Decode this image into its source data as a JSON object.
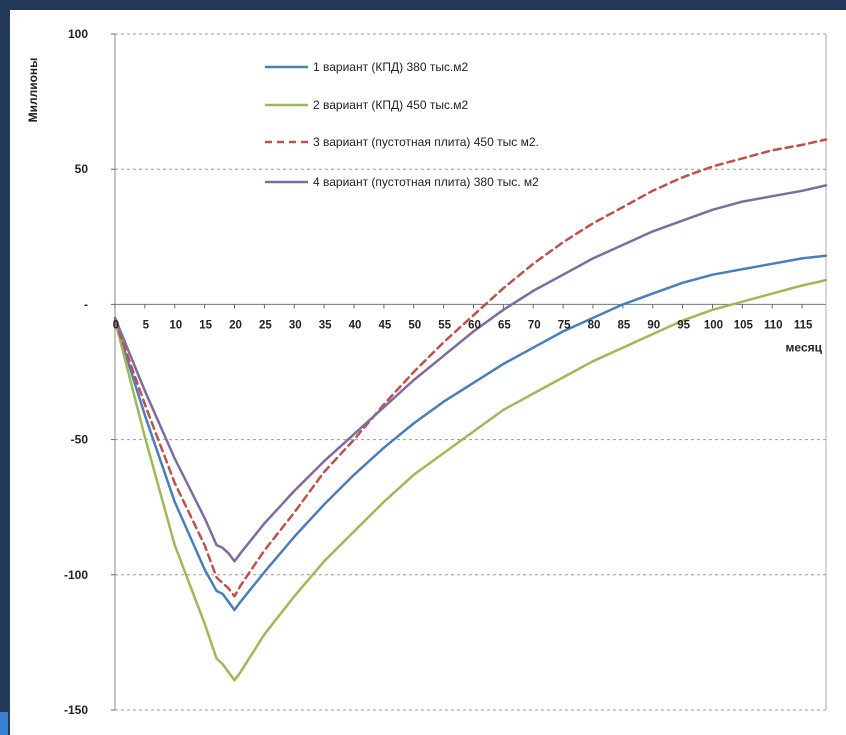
{
  "chart_data": {
    "type": "line",
    "title": "",
    "xlabel": "месяц",
    "ylabel": "Миллионы",
    "xlim": [
      0,
      119
    ],
    "ylim": [
      -150,
      100
    ],
    "yticks": [
      100,
      50,
      0,
      -50,
      -100,
      -150
    ],
    "ytick_labels": [
      "100",
      "50",
      "-",
      "-50",
      "-100",
      "-150"
    ],
    "xticks": [
      0,
      5,
      10,
      15,
      20,
      25,
      30,
      35,
      40,
      45,
      50,
      55,
      60,
      65,
      70,
      75,
      80,
      85,
      90,
      95,
      100,
      105,
      110,
      115
    ],
    "xtick_labels": [
      "0",
      "5",
      "10",
      "15",
      "20",
      "25",
      "30",
      "35",
      "40",
      "45",
      "50",
      "55",
      "60",
      "65",
      "70",
      "75",
      "80",
      "85",
      "90",
      "95",
      "100",
      "105",
      "110",
      "115"
    ],
    "grid": "horizontal dashed",
    "legend_position": "top-left",
    "x": [
      0,
      5,
      10,
      15,
      17,
      18,
      19,
      20,
      21,
      25,
      30,
      35,
      40,
      45,
      50,
      55,
      60,
      65,
      70,
      75,
      80,
      85,
      90,
      95,
      100,
      105,
      110,
      115,
      119
    ],
    "series": [
      {
        "name": "1 вариант (КПД) 380 тыс.м2",
        "color": "#4a7ebb",
        "dash": "solid",
        "values": [
          -6,
          -41,
          -73,
          -98,
          -106,
          -107,
          -110,
          -113,
          -110,
          -99,
          -86,
          -74,
          -63,
          -53,
          -44,
          -36,
          -29,
          -22,
          -16,
          -10,
          -5,
          0,
          4,
          8,
          11,
          13,
          15,
          17,
          18
        ]
      },
      {
        "name": "2 вариант (КПД) 450 тыс.м2",
        "color": "#9bbb59",
        "dash": "solid",
        "values": [
          -6,
          -49,
          -89,
          -118,
          -131,
          -133,
          -136,
          -139,
          -136,
          -122,
          -108,
          -95,
          -84,
          -73,
          -63,
          -55,
          -47,
          -39,
          -33,
          -27,
          -21,
          -16,
          -11,
          -6,
          -2,
          1,
          4,
          7,
          9
        ]
      },
      {
        "name": "3 вариант (пустотная плита) 450 тыс м2.",
        "color": "#c0504d",
        "dash": "dashed",
        "values": [
          -6,
          -37,
          -66,
          -89,
          -101,
          -103,
          -105,
          -108,
          -104,
          -91,
          -77,
          -62,
          -50,
          -37,
          -25,
          -14,
          -4,
          6,
          15,
          23,
          30,
          36,
          42,
          47,
          51,
          54,
          57,
          59,
          61
        ]
      },
      {
        "name": "4 вариант (пустотная плита) 380 тыс. м2",
        "color": "#7f6b9e",
        "dash": "solid",
        "values": [
          -5,
          -32,
          -57,
          -79,
          -89,
          -90,
          -92,
          -95,
          -92,
          -81,
          -69,
          -58,
          -48,
          -38,
          -28,
          -19,
          -10,
          -2,
          5,
          11,
          17,
          22,
          27,
          31,
          35,
          38,
          40,
          42,
          44
        ]
      }
    ]
  }
}
